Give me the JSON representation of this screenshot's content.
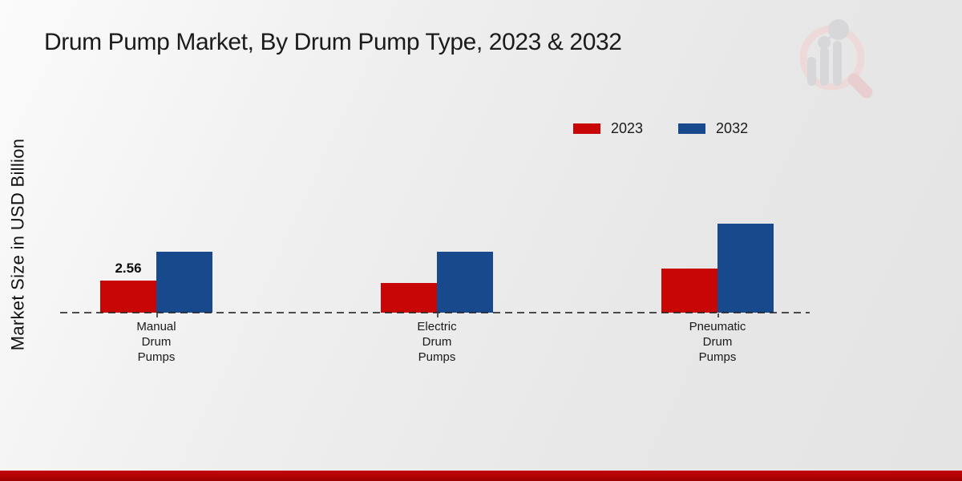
{
  "title": "Drum Pump Market, By Drum Pump Type, 2023 & 2032",
  "y_axis": {
    "label": "Market Size in USD Billion"
  },
  "chart_data": {
    "type": "bar",
    "title": "Drum Pump Market, By Drum Pump Type, 2023 & 2032",
    "xlabel": "",
    "ylabel": "Market Size in USD Billion",
    "categories": [
      "Manual Drum Pumps",
      "Electric Drum Pumps",
      "Pneumatic Drum Pumps"
    ],
    "series": [
      {
        "name": "2023",
        "color": "#c90606",
        "values": [
          2.56,
          2.4,
          3.5
        ]
      },
      {
        "name": "2032",
        "color": "#17498c",
        "values": [
          4.9,
          4.9,
          7.1
        ]
      }
    ],
    "data_labels": [
      {
        "series_index": 0,
        "category_index": 0,
        "text": "2.56"
      }
    ],
    "ylim": [
      0,
      7.5
    ],
    "grid": false,
    "baseline_style": "dashed",
    "legend_position": "top-right"
  },
  "colors": {
    "series_2023": "#c90606",
    "series_2032": "#17498c",
    "footer_bar": "#b30404",
    "baseline": "#2e2e2e"
  },
  "icons": {
    "watermark": "market-research-chart-magnifier-logo"
  }
}
